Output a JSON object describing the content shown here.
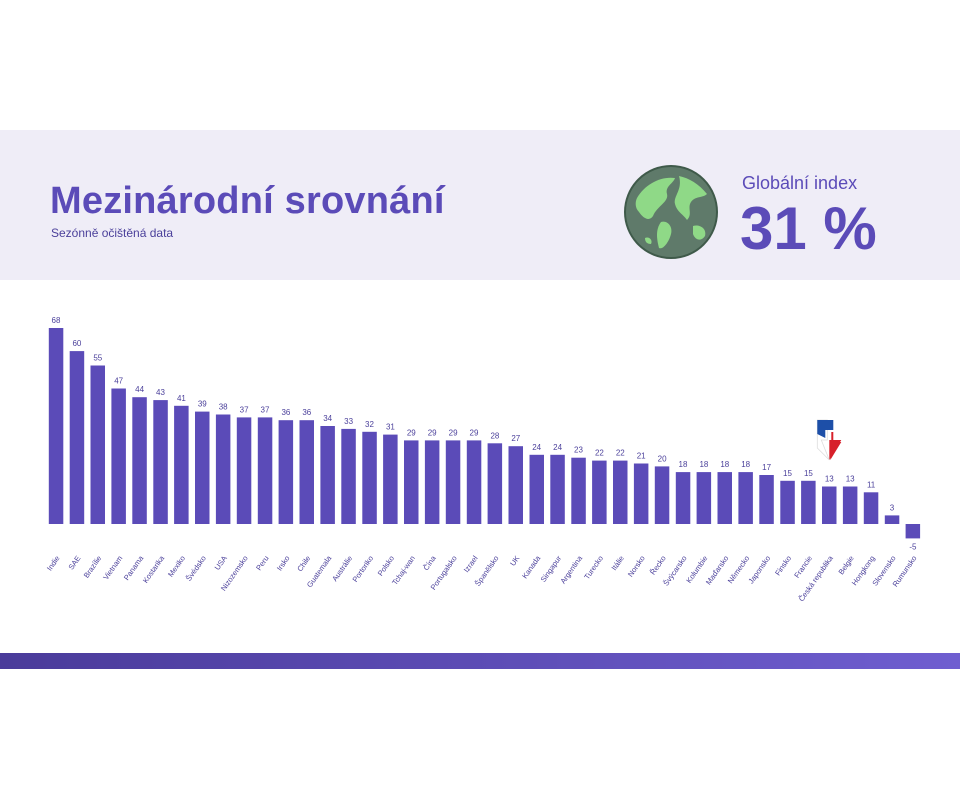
{
  "header": {
    "title": "Mezinárodní srovnání",
    "subtitle": "Sezónně očištěná data",
    "index_label": "Globální index",
    "index_value": "31 %"
  },
  "icons": {
    "globe": "globe-icon",
    "czech_flag_arrow": "czech-flag-down-arrow-icon"
  },
  "colors": {
    "accent": "#5b4bb8",
    "bar": "#5b4bb8",
    "header_band": "#efedf7"
  },
  "chart_data": {
    "type": "bar",
    "categories": [
      "Indie",
      "SAE",
      "Brazílie",
      "Vietnam",
      "Panama",
      "Kostarika",
      "Mexiko",
      "Švédsko",
      "USA",
      "Nizozemsko",
      "Peru",
      "Irsko",
      "Chile",
      "Guatemala",
      "Austrálie",
      "Portoriko",
      "Polsko",
      "Tchaj-wan",
      "Čína",
      "Portugalsko",
      "Izrael",
      "Španělsko",
      "UK",
      "Kanada",
      "Singapur",
      "Argentina",
      "Turecko",
      "Itálie",
      "Norsko",
      "Řecko",
      "Švýcarsko",
      "Kolumbie",
      "Maďarsko",
      "Německo",
      "Japonsko",
      "Finsko",
      "Francie",
      "Česká republika",
      "Belgie",
      "Hongkong",
      "Slovensko",
      "Rumunsko"
    ],
    "values": [
      68,
      60,
      55,
      47,
      44,
      43,
      41,
      39,
      38,
      37,
      37,
      36,
      36,
      34,
      33,
      32,
      31,
      29,
      29,
      29,
      29,
      28,
      27,
      24,
      24,
      23,
      22,
      22,
      21,
      20,
      18,
      18,
      18,
      18,
      17,
      15,
      15,
      13,
      13,
      11,
      3,
      -5
    ],
    "highlight_category": "Česká republika",
    "ylim": [
      -5,
      68
    ],
    "grid": false,
    "legend": "none"
  }
}
